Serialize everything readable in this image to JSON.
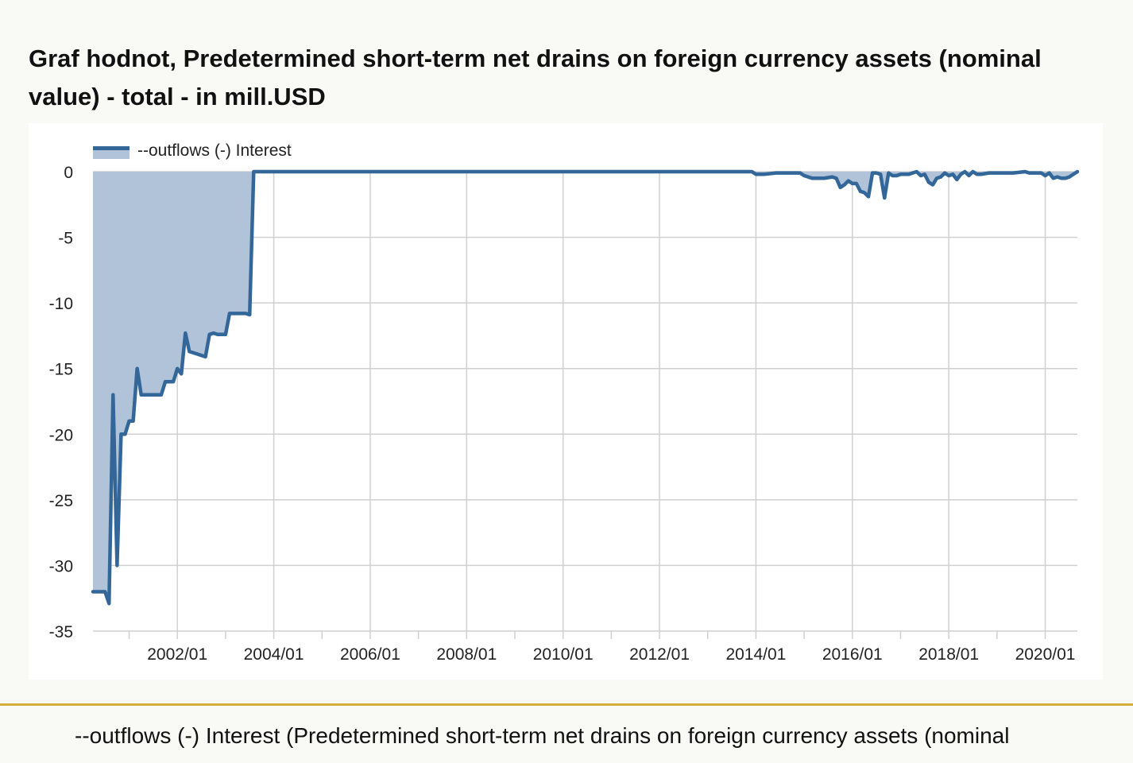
{
  "title": "Graf hodnot, Predetermined short-term net drains on foreign currency assets (nominal value) - total - in mill.USD",
  "footer_text": "--outflows (-) Interest (Predetermined short-term net drains on foreign currency assets (nominal",
  "colors": {
    "line": "#336699",
    "fill": "#b1c3d9",
    "grid": "#d0d0d0",
    "divider": "#d4ae3d",
    "background": "#f9f9f6",
    "plot_background": "#ffffff"
  },
  "chart_data": {
    "type": "area",
    "title": "",
    "xlabel": "",
    "ylabel": "",
    "grid": true,
    "legend_position": "top-left",
    "x_format": "YYYY/MM",
    "xlim": [
      "2000/04",
      "2020/09"
    ],
    "ylim": [
      -35,
      0
    ],
    "y_ticks": [
      0,
      -5,
      -10,
      -15,
      -20,
      -25,
      -30,
      -35
    ],
    "x_ticks": [
      "2002/01",
      "2004/01",
      "2006/01",
      "2008/01",
      "2010/01",
      "2012/01",
      "2014/01",
      "2016/01",
      "2018/01",
      "2020/01"
    ],
    "series": [
      {
        "name": "--outflows (-) Interest",
        "points": [
          [
            "2000/04",
            -32.0
          ],
          [
            "2000/05",
            -32.0
          ],
          [
            "2000/06",
            -32.0
          ],
          [
            "2000/07",
            -32.0
          ],
          [
            "2000/08",
            -32.9
          ],
          [
            "2000/09",
            -17.0
          ],
          [
            "2000/10",
            -30.0
          ],
          [
            "2000/11",
            -20.0
          ],
          [
            "2000/12",
            -20.0
          ],
          [
            "2001/01",
            -19.0
          ],
          [
            "2001/02",
            -19.0
          ],
          [
            "2001/03",
            -15.0
          ],
          [
            "2001/04",
            -17.0
          ],
          [
            "2001/05",
            -17.0
          ],
          [
            "2001/06",
            -17.0
          ],
          [
            "2001/07",
            -17.0
          ],
          [
            "2001/08",
            -17.0
          ],
          [
            "2001/09",
            -17.0
          ],
          [
            "2001/10",
            -16.0
          ],
          [
            "2001/11",
            -16.0
          ],
          [
            "2001/12",
            -16.0
          ],
          [
            "2002/01",
            -15.0
          ],
          [
            "2002/02",
            -15.4
          ],
          [
            "2002/03",
            -12.3
          ],
          [
            "2002/04",
            -13.7
          ],
          [
            "2002/05",
            -13.8
          ],
          [
            "2002/06",
            -13.9
          ],
          [
            "2002/07",
            -14.0
          ],
          [
            "2002/08",
            -14.1
          ],
          [
            "2002/09",
            -12.4
          ],
          [
            "2002/10",
            -12.3
          ],
          [
            "2002/11",
            -12.4
          ],
          [
            "2002/12",
            -12.4
          ],
          [
            "2003/01",
            -12.4
          ],
          [
            "2003/02",
            -10.8
          ],
          [
            "2003/03",
            -10.8
          ],
          [
            "2003/04",
            -10.8
          ],
          [
            "2003/05",
            -10.8
          ],
          [
            "2003/06",
            -10.8
          ],
          [
            "2003/07",
            -10.9
          ],
          [
            "2003/08",
            0.0
          ],
          [
            "2005/01",
            0.0
          ],
          [
            "2008/01",
            0.0
          ],
          [
            "2011/01",
            0.0
          ],
          [
            "2013/12",
            0.0
          ],
          [
            "2014/01",
            -0.2
          ],
          [
            "2014/03",
            -0.2
          ],
          [
            "2014/06",
            -0.1
          ],
          [
            "2014/09",
            -0.1
          ],
          [
            "2014/12",
            -0.1
          ],
          [
            "2015/01",
            -0.3
          ],
          [
            "2015/03",
            -0.5
          ],
          [
            "2015/06",
            -0.5
          ],
          [
            "2015/08",
            -0.4
          ],
          [
            "2015/09",
            -0.5
          ],
          [
            "2015/10",
            -1.2
          ],
          [
            "2015/11",
            -1.0
          ],
          [
            "2015/12",
            -0.7
          ],
          [
            "2016/01",
            -0.9
          ],
          [
            "2016/02",
            -0.9
          ],
          [
            "2016/03",
            -1.5
          ],
          [
            "2016/04",
            -1.6
          ],
          [
            "2016/05",
            -1.9
          ],
          [
            "2016/06",
            -0.1
          ],
          [
            "2016/07",
            -0.1
          ],
          [
            "2016/08",
            -0.2
          ],
          [
            "2016/09",
            -2.0
          ],
          [
            "2016/10",
            -0.1
          ],
          [
            "2016/11",
            -0.3
          ],
          [
            "2016/12",
            -0.3
          ],
          [
            "2017/01",
            -0.2
          ],
          [
            "2017/03",
            -0.2
          ],
          [
            "2017/04",
            -0.1
          ],
          [
            "2017/05",
            0.0
          ],
          [
            "2017/06",
            -0.3
          ],
          [
            "2017/07",
            -0.2
          ],
          [
            "2017/08",
            -0.8
          ],
          [
            "2017/09",
            -1.0
          ],
          [
            "2017/10",
            -0.5
          ],
          [
            "2017/11",
            -0.4
          ],
          [
            "2017/12",
            -0.1
          ],
          [
            "2018/01",
            -0.3
          ],
          [
            "2018/02",
            -0.2
          ],
          [
            "2018/03",
            -0.6
          ],
          [
            "2018/04",
            -0.2
          ],
          [
            "2018/05",
            0.0
          ],
          [
            "2018/06",
            -0.3
          ],
          [
            "2018/07",
            0.0
          ],
          [
            "2018/08",
            -0.2
          ],
          [
            "2018/09",
            -0.2
          ],
          [
            "2018/11",
            -0.1
          ],
          [
            "2019/02",
            -0.1
          ],
          [
            "2019/05",
            -0.1
          ],
          [
            "2019/08",
            0.0
          ],
          [
            "2019/09",
            -0.1
          ],
          [
            "2019/12",
            -0.1
          ],
          [
            "2020/01",
            -0.3
          ],
          [
            "2020/02",
            -0.1
          ],
          [
            "2020/03",
            -0.5
          ],
          [
            "2020/04",
            -0.4
          ],
          [
            "2020/05",
            -0.5
          ],
          [
            "2020/06",
            -0.5
          ],
          [
            "2020/07",
            -0.4
          ],
          [
            "2020/08",
            -0.2
          ],
          [
            "2020/09",
            0.0
          ]
        ]
      }
    ]
  }
}
